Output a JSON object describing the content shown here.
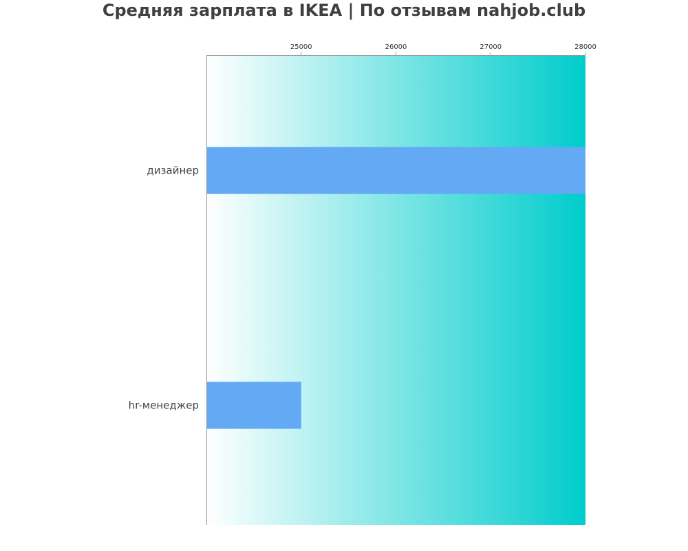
{
  "chart_data": {
    "type": "bar",
    "orientation": "horizontal",
    "title": "Средняя зарплата в IKEA | По отзывам nahjob.club",
    "xlabel": "",
    "ylabel": "",
    "categories": [
      "дизайнер",
      "hr-менеджер"
    ],
    "values": [
      28000,
      25000
    ],
    "xlim": [
      24000,
      28000
    ],
    "xticks": [
      25000,
      26000,
      27000,
      28000
    ],
    "tick_labels": [
      "25000",
      "26000",
      "27000",
      "28000"
    ],
    "x_axis_position": "top",
    "grid": false,
    "legend": "none",
    "colors": {
      "bar": "#63a9f4",
      "background_gradient_start": "#ffffff",
      "background_gradient_end": "#00cccc",
      "axis": "#999999",
      "title": "#404040",
      "text": "#444444"
    }
  }
}
